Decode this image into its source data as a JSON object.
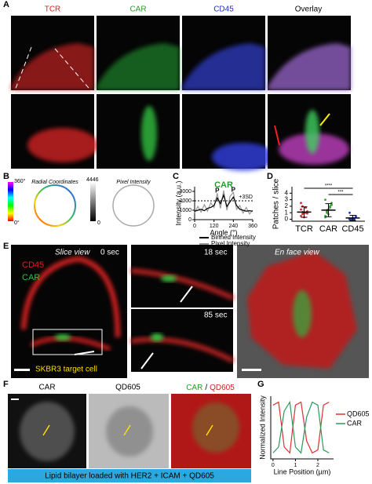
{
  "panel_a": {
    "label": "A",
    "columns": [
      "TCR",
      "CAR",
      "CD45",
      "Overlay"
    ]
  },
  "panel_b": {
    "label": "B",
    "left_title": "Radial Coordinates",
    "right_title": "Pixel Intensity",
    "hue_max": "360°",
    "hue_min": "0°",
    "gray_max": "4446",
    "gray_min": "0"
  },
  "panel_c": {
    "label": "C",
    "chart": {
      "type": "line",
      "title": "CAR",
      "xlabel": "Angle (°)",
      "ylabel": "Intensity (a.u.)",
      "x": [
        0,
        20,
        40,
        60,
        80,
        100,
        120,
        140,
        160,
        180,
        200,
        220,
        240,
        260,
        280,
        300,
        320,
        340,
        360
      ],
      "series": [
        {
          "name": "Binned Intensity",
          "color": "#000000",
          "values": [
            900,
            1000,
            1100,
            950,
            1200,
            1300,
            1500,
            2300,
            1700,
            2600,
            1400,
            1900,
            2400,
            1500,
            1100,
            1000,
            900,
            950,
            900
          ]
        },
        {
          "name": "Pixel Intensity",
          "color": "#999999",
          "values": [
            700,
            1400,
            800,
            1600,
            900,
            1800,
            1300,
            2800,
            1200,
            3100,
            1000,
            2500,
            2900,
            1100,
            1500,
            700,
            1300,
            600,
            1000
          ]
        }
      ],
      "threshold": 2000,
      "threshold_label": "+3SD",
      "peak_labels": [
        "P",
        "P"
      ],
      "xlim": [
        0,
        360
      ],
      "xticks": [
        0,
        120,
        240,
        360
      ],
      "ylim": [
        0,
        3500
      ],
      "yticks": [
        0,
        1000,
        2000,
        3000
      ]
    }
  },
  "panel_d": {
    "label": "D",
    "chart": {
      "type": "dot",
      "ylabel": "Patches / slice",
      "categories": [
        "TCR",
        "CAR",
        "CD45"
      ],
      "colors": [
        "#d62728",
        "#2ca02c",
        "#1f3fbf"
      ],
      "points": [
        [
          0.5,
          0.8,
          1,
          1,
          1.2,
          1.5,
          2,
          0.3,
          1.8,
          0.9,
          2.5,
          1.1
        ],
        [
          0.5,
          1,
          1.5,
          2,
          2.5,
          3,
          1.2,
          0.8,
          1.8,
          2.2,
          0.3,
          1.4
        ],
        [
          0,
          0,
          0.2,
          0,
          0.5,
          1,
          0,
          0.1,
          0,
          0.3,
          0,
          0
        ]
      ],
      "means": [
        1.1,
        1.4,
        0.2
      ],
      "errors": [
        0.8,
        1.0,
        0.4
      ],
      "significance": [
        "****",
        "***"
      ],
      "ylim": [
        -0.3,
        5
      ],
      "yticks": [
        0,
        1,
        2,
        3,
        4
      ]
    }
  },
  "panel_e": {
    "label": "E",
    "slice_view": "Slice view",
    "time_0": "0 sec",
    "cd45": "CD45",
    "car": "CAR",
    "target": "SKBR3 target cell",
    "time_18": "18 sec",
    "time_85": "85 sec",
    "en_face": "En face view"
  },
  "panel_f": {
    "label": "F",
    "col1": "CAR",
    "col2": "QD605",
    "col3_a": "CAR",
    "col3_sep": "/",
    "col3_b": "QD605",
    "banner": "Lipid bilayer loaded with HER2 + ICAM + QD605"
  },
  "panel_g": {
    "label": "G",
    "chart": {
      "type": "line",
      "xlabel": "Line Position (µm)",
      "ylabel": "Normalized Intensity",
      "x": [
        0,
        0.25,
        0.5,
        0.75,
        1,
        1.25,
        1.5,
        1.75,
        2,
        2.25,
        2.5
      ],
      "series": [
        {
          "name": "QD605",
          "color": "#e03030",
          "values": [
            0.9,
            0.95,
            0.2,
            0.1,
            0.9,
            0.95,
            0.3,
            0.1,
            0.15,
            0.9,
            0.95
          ]
        },
        {
          "name": "CAR",
          "color": "#2a9a5a",
          "values": [
            0.1,
            0.2,
            0.8,
            0.95,
            0.2,
            0.1,
            0.7,
            0.95,
            0.9,
            0.15,
            0.1
          ]
        }
      ],
      "xlim": [
        -0.1,
        2.7
      ],
      "xticks": [
        0,
        1,
        2
      ],
      "ylim": [
        0,
        1.05
      ]
    }
  }
}
